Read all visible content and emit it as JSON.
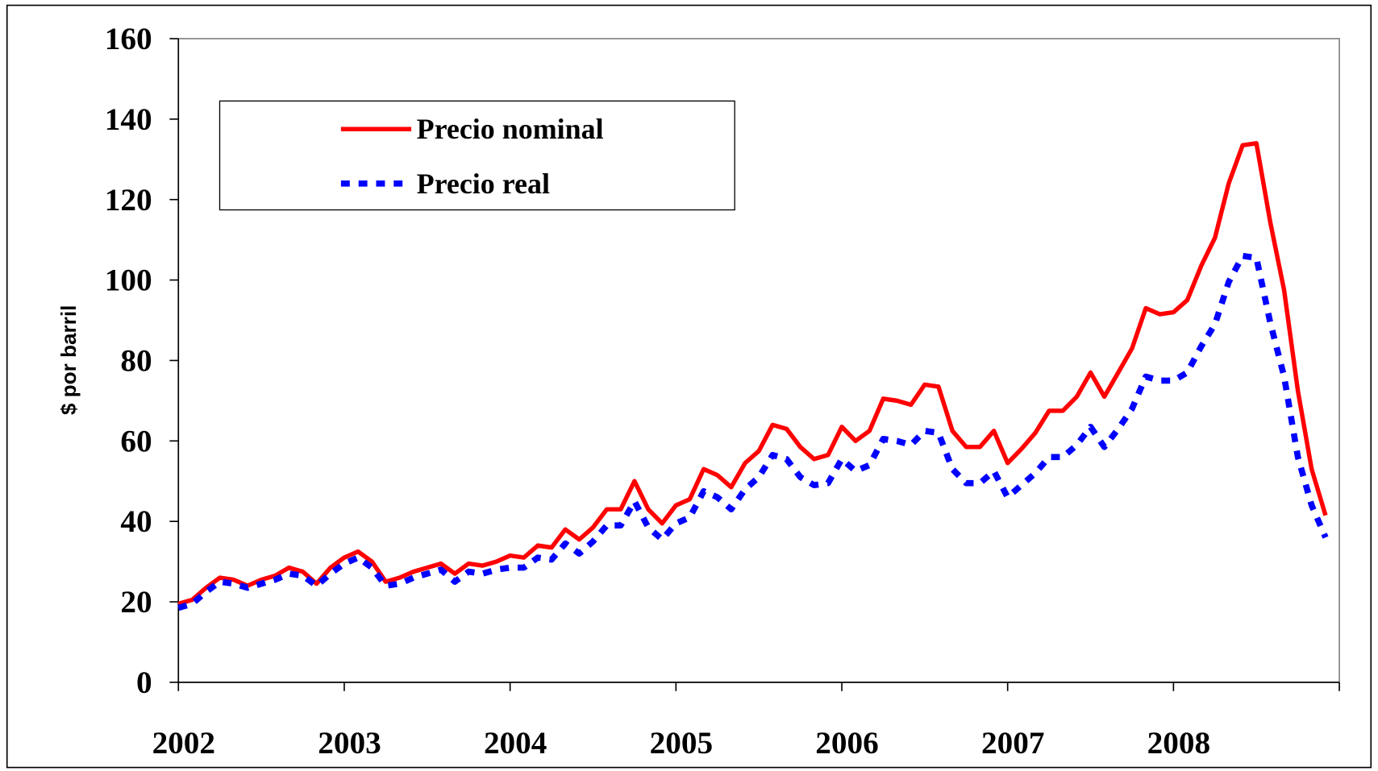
{
  "chart_data": {
    "type": "line",
    "ylabel": "$ por barril",
    "x": [
      2002,
      2002.083,
      2002.167,
      2002.25,
      2002.333,
      2002.417,
      2002.5,
      2002.583,
      2002.667,
      2002.75,
      2002.833,
      2002.917,
      2003,
      2003.083,
      2003.167,
      2003.25,
      2003.333,
      2003.417,
      2003.5,
      2003.583,
      2003.667,
      2003.75,
      2003.833,
      2003.917,
      2004,
      2004.083,
      2004.167,
      2004.25,
      2004.333,
      2004.417,
      2004.5,
      2004.583,
      2004.667,
      2004.75,
      2004.833,
      2004.917,
      2005,
      2005.083,
      2005.167,
      2005.25,
      2005.333,
      2005.417,
      2005.5,
      2005.583,
      2005.667,
      2005.75,
      2005.833,
      2005.917,
      2006,
      2006.083,
      2006.167,
      2006.25,
      2006.333,
      2006.417,
      2006.5,
      2006.583,
      2006.667,
      2006.75,
      2006.833,
      2006.917,
      2007,
      2007.083,
      2007.167,
      2007.25,
      2007.333,
      2007.417,
      2007.5,
      2007.583,
      2007.667,
      2007.75,
      2007.833,
      2007.917,
      2008,
      2008.083,
      2008.167,
      2008.25,
      2008.333,
      2008.417,
      2008.5,
      2008.583,
      2008.667,
      2008.75,
      2008.833,
      2008.917
    ],
    "series": [
      {
        "name": "Precio nominal",
        "color": "#ff0000",
        "dash": "solid",
        "values": [
          19.5,
          20.5,
          23.5,
          26,
          25.5,
          24,
          25.5,
          26.5,
          28.5,
          27.5,
          24.5,
          28.5,
          31,
          32.5,
          30,
          25,
          26,
          27.5,
          28.5,
          29.5,
          27,
          29.5,
          29,
          30,
          31.5,
          31,
          34,
          33.5,
          38,
          35.5,
          38.5,
          43,
          43,
          50,
          43,
          39.5,
          44,
          45.5,
          53,
          51.5,
          48.5,
          54.5,
          57.5,
          64,
          63,
          58.5,
          55.5,
          56.5,
          63.5,
          60,
          62.5,
          70.5,
          70,
          69,
          74,
          73.5,
          62.5,
          58.5,
          58.5,
          62.5,
          54.5,
          58,
          62,
          67.5,
          67.5,
          71,
          77,
          71,
          77,
          83,
          93,
          91.5,
          92,
          95,
          103.5,
          110.5,
          124,
          133.5,
          134,
          114.5,
          97.5,
          72.5,
          53,
          41.5
        ]
      },
      {
        "name": "Precio real",
        "color": "#0000ff",
        "dash": "dashed",
        "values": [
          18.5,
          19.5,
          22.5,
          25,
          24.5,
          23.5,
          24.5,
          25.5,
          27,
          26.5,
          24,
          27,
          29.5,
          31,
          28.5,
          24,
          24.5,
          26,
          27,
          28,
          25,
          27.5,
          27,
          28,
          28.5,
          28.5,
          31,
          30.5,
          34.5,
          32,
          35,
          39,
          39,
          45,
          38.5,
          35.5,
          39.5,
          41,
          47.5,
          46,
          43,
          48,
          51,
          56.5,
          55.5,
          51,
          49,
          49.5,
          55.5,
          52.5,
          54,
          60.5,
          60,
          59,
          62.5,
          62,
          53,
          49.5,
          49.5,
          52.5,
          46,
          49,
          52,
          56,
          56,
          59,
          63.5,
          58.5,
          63,
          68,
          76,
          75,
          75,
          77,
          83.5,
          89,
          99.5,
          106,
          105.5,
          89.5,
          76,
          56,
          44,
          36
        ]
      }
    ],
    "xlim": [
      2002,
      2009
    ],
    "xticks": [
      2002,
      2003,
      2004,
      2005,
      2006,
      2007,
      2008
    ],
    "ylim": [
      0,
      160
    ],
    "yticks": [
      0,
      20,
      40,
      60,
      80,
      100,
      120,
      140,
      160
    ],
    "grid": false,
    "legend": "upper left"
  }
}
